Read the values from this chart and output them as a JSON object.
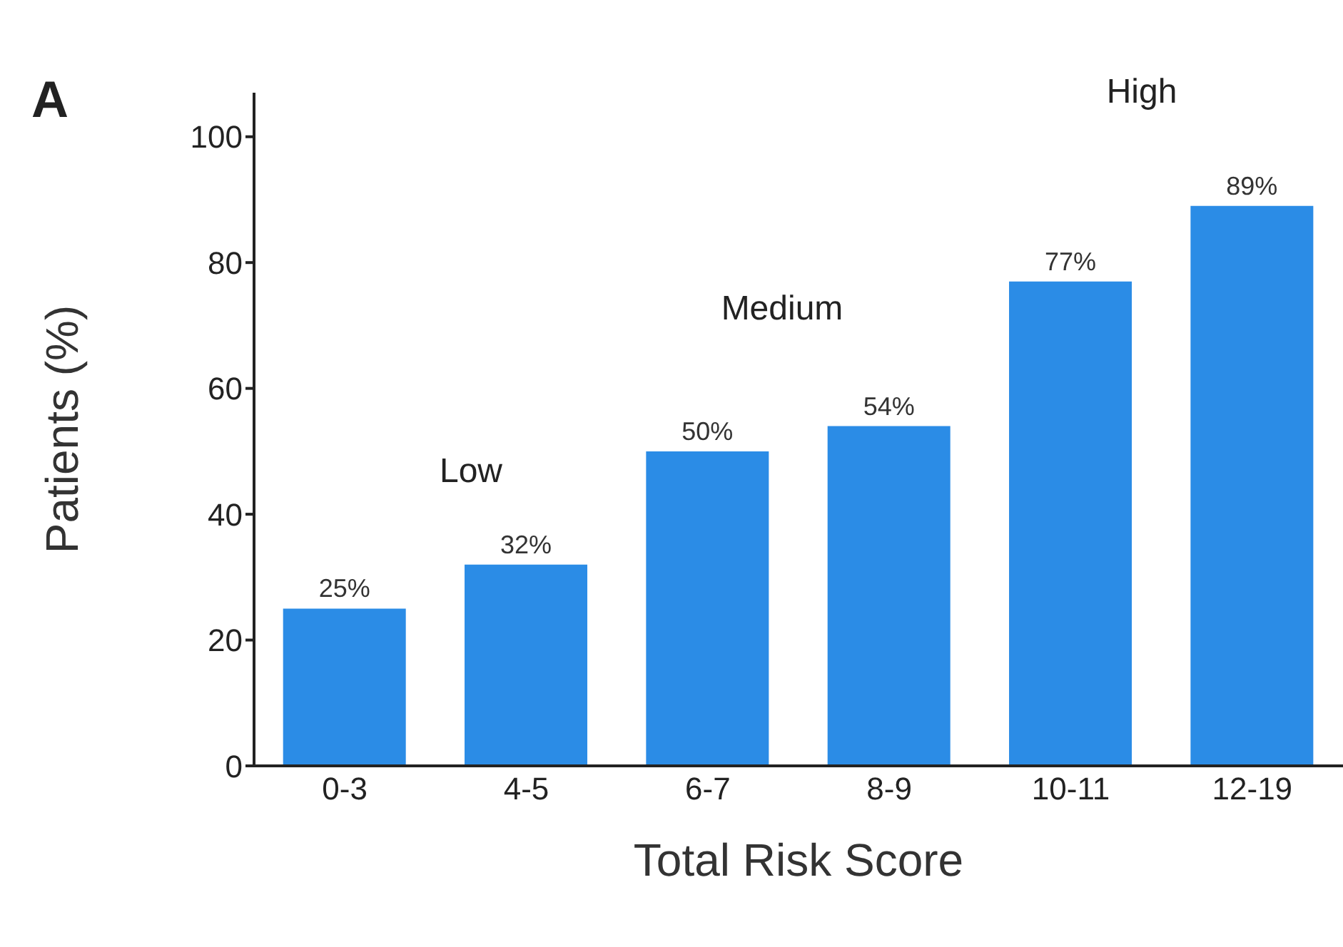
{
  "chart_data": {
    "type": "bar",
    "categories": [
      "0-3",
      "4-5",
      "6-7",
      "8-9",
      "10-11",
      "12-19"
    ],
    "values": [
      25,
      32,
      50,
      54,
      77,
      89
    ],
    "value_labels": [
      "25%",
      "32%",
      "50%",
      "54%",
      "77%",
      "89%"
    ],
    "color": "#2b8ce6",
    "xlabel": "Total Risk Score",
    "ylabel": "Patients (%)",
    "ylim": [
      0,
      107
    ],
    "yticks": [
      0,
      20,
      40,
      60,
      80,
      100
    ],
    "annotations": [
      "A",
      "Low",
      "Medium",
      "High"
    ]
  }
}
